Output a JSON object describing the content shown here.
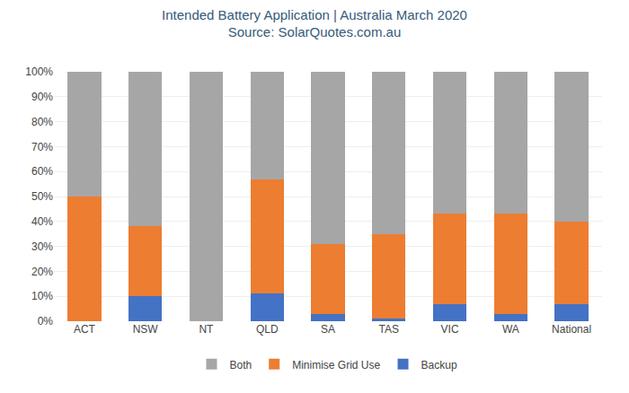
{
  "chart_data": {
    "type": "bar",
    "stacked": true,
    "title": "Intended Battery Application | Australia March 2020",
    "subtitle": "Source: SolarQuotes.com.au",
    "categories": [
      "ACT",
      "NSW",
      "NT",
      "QLD",
      "SA",
      "TAS",
      "VIC",
      "WA",
      "National"
    ],
    "series": [
      {
        "name": "Backup",
        "color": "#4472C4",
        "values": [
          0,
          10,
          0,
          11,
          3,
          1,
          7,
          3,
          7
        ]
      },
      {
        "name": "Minimise Grid Use",
        "color": "#ED7D31",
        "values": [
          50,
          28,
          0,
          46,
          28,
          34,
          36,
          40,
          33
        ]
      },
      {
        "name": "Both",
        "color": "#A6A6A6",
        "values": [
          50,
          62,
          100,
          43,
          69,
          65,
          57,
          57,
          60
        ]
      }
    ],
    "ylim": [
      0,
      100
    ],
    "yticks": [
      {
        "value": 0,
        "label": "0%"
      },
      {
        "value": 10,
        "label": "10%"
      },
      {
        "value": 20,
        "label": "20%"
      },
      {
        "value": 30,
        "label": "30%"
      },
      {
        "value": 40,
        "label": "40%"
      },
      {
        "value": 50,
        "label": "50%"
      },
      {
        "value": 60,
        "label": "60%"
      },
      {
        "value": 70,
        "label": "70%"
      },
      {
        "value": 80,
        "label": "80%"
      },
      {
        "value": 90,
        "label": "90%"
      },
      {
        "value": 100,
        "label": "100%"
      }
    ],
    "grid": true,
    "legend": "bottom"
  }
}
